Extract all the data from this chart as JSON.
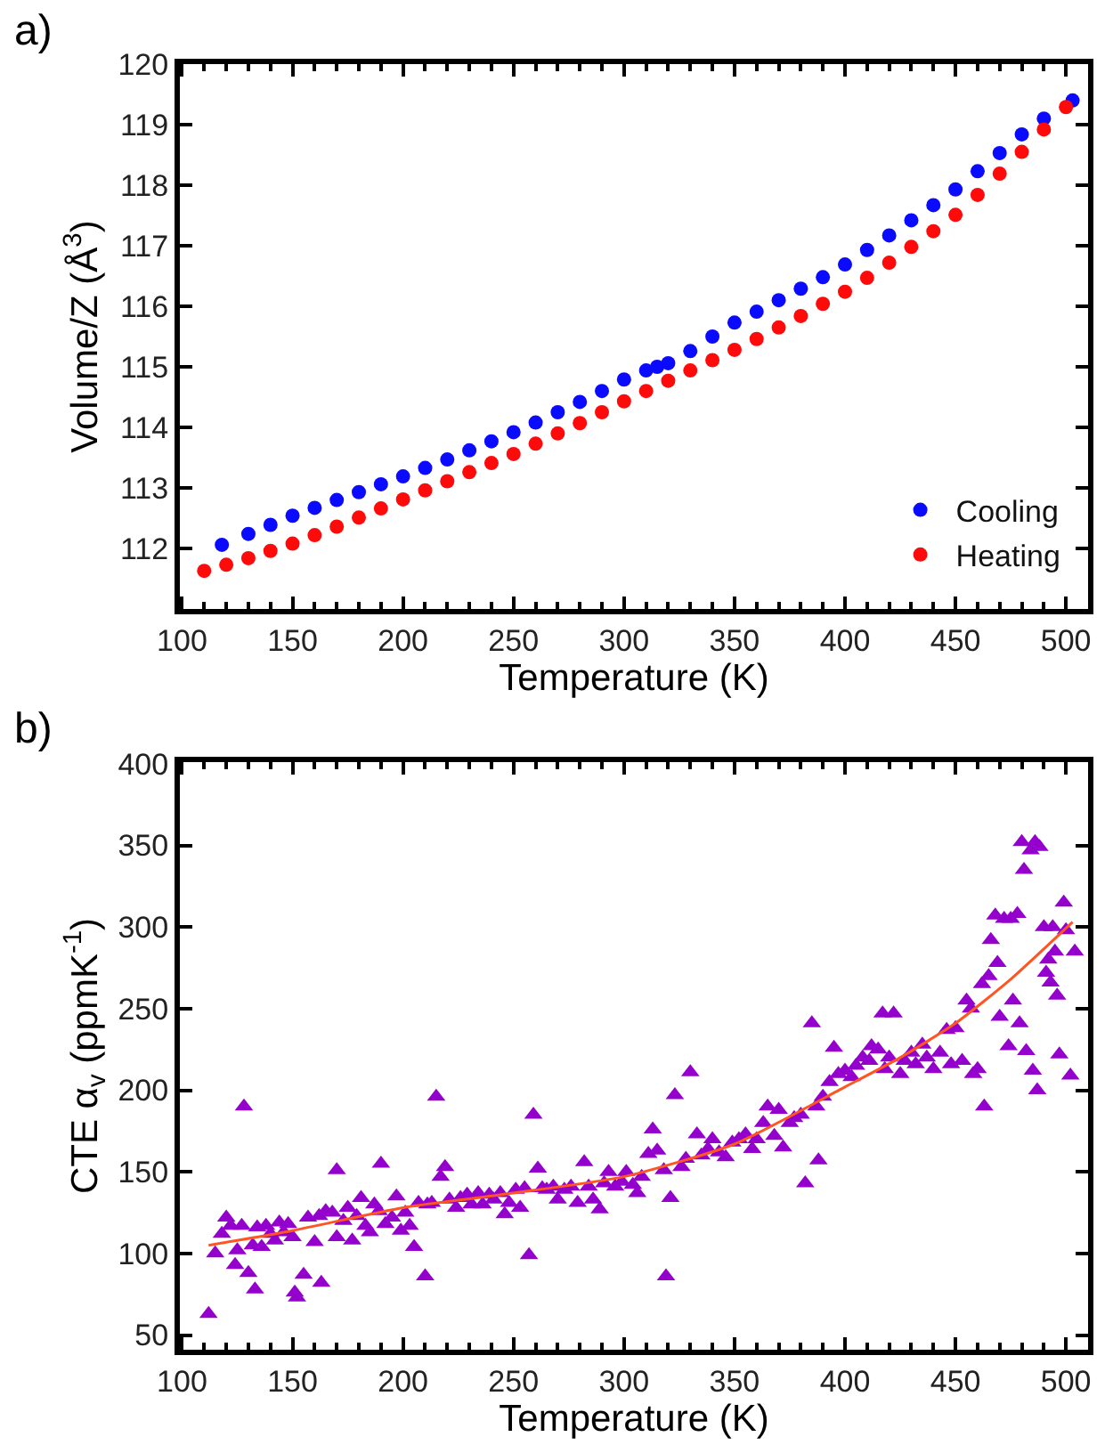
{
  "chart_data": [
    {
      "type": "scatter",
      "title": "a)",
      "xlabel": "Temperature (K)",
      "ylabel": "Volume/Z (Å$^{3}$)",
      "xlim": [
        99,
        510
      ],
      "ylim": [
        111,
        120
      ],
      "xticks": [
        100,
        150,
        200,
        250,
        300,
        350,
        400,
        450,
        500
      ],
      "yticks": [
        112,
        113,
        114,
        115,
        116,
        117,
        118,
        119,
        120
      ],
      "grid": false,
      "legend": "bottom right",
      "marker": "circle",
      "series": [
        {
          "name": "Cooling",
          "color": "#0a0aff",
          "x": [
            118,
            130,
            140,
            150,
            160,
            170,
            180,
            190,
            200,
            210,
            220,
            230,
            240,
            250,
            260,
            270,
            280,
            290,
            300,
            310,
            315,
            320,
            330,
            340,
            350,
            360,
            370,
            380,
            390,
            400,
            410,
            420,
            430,
            440,
            450,
            460,
            470,
            480,
            490,
            503
          ],
          "values": [
            112.06,
            112.24,
            112.39,
            112.54,
            112.67,
            112.8,
            112.93,
            113.06,
            113.19,
            113.33,
            113.47,
            113.62,
            113.77,
            113.92,
            114.08,
            114.25,
            114.42,
            114.6,
            114.79,
            114.94,
            115.0,
            115.06,
            115.26,
            115.5,
            115.73,
            115.91,
            116.1,
            116.29,
            116.48,
            116.69,
            116.93,
            117.17,
            117.42,
            117.67,
            117.93,
            118.23,
            118.53,
            118.84,
            119.1,
            119.4
          ]
        },
        {
          "name": "Heating",
          "color": "#ff0a0a",
          "x": [
            110,
            120,
            130,
            140,
            150,
            160,
            170,
            180,
            190,
            200,
            210,
            220,
            230,
            240,
            250,
            260,
            270,
            280,
            290,
            300,
            310,
            320,
            330,
            340,
            350,
            360,
            370,
            380,
            390,
            400,
            410,
            420,
            430,
            440,
            450,
            460,
            470,
            480,
            490,
            500
          ],
          "values": [
            111.63,
            111.73,
            111.84,
            111.96,
            112.08,
            112.22,
            112.36,
            112.51,
            112.66,
            112.81,
            112.96,
            113.11,
            113.26,
            113.41,
            113.56,
            113.73,
            113.9,
            114.07,
            114.25,
            114.43,
            114.6,
            114.77,
            114.94,
            115.11,
            115.28,
            115.46,
            115.65,
            115.84,
            116.04,
            116.24,
            116.47,
            116.72,
            116.98,
            117.24,
            117.51,
            117.84,
            118.19,
            118.55,
            118.92,
            119.29
          ]
        }
      ]
    },
    {
      "type": "scatter",
      "title": "b)",
      "xlabel": "Temperature (K)",
      "ylabel": "CTE α$_{v}$ (ppmK$^{-1}$)",
      "xlim": [
        99,
        510
      ],
      "ylim": [
        41,
        401
      ],
      "xticks": [
        100,
        150,
        200,
        250,
        300,
        350,
        400,
        450,
        500
      ],
      "yticks": [
        50,
        100,
        150,
        200,
        250,
        300,
        350,
        400
      ],
      "grid": false,
      "series": [
        {
          "color": "#9400cc",
          "marker": "triangle",
          "x": [
            112,
            115,
            118,
            120,
            122,
            124,
            125,
            127,
            128,
            130,
            132,
            133,
            134,
            136,
            138,
            140,
            142,
            144,
            146,
            148,
            150,
            151,
            152,
            155,
            157,
            160,
            162,
            163,
            165,
            168,
            170,
            170,
            173,
            175,
            177,
            179,
            181,
            183,
            185,
            187,
            189,
            190,
            192,
            195,
            197,
            199,
            201,
            203,
            205,
            207,
            210,
            211,
            213,
            215,
            217,
            219,
            221,
            224,
            226,
            229,
            231,
            234,
            236,
            239,
            241,
            244,
            246,
            248,
            251,
            253,
            255,
            257,
            259,
            261,
            263,
            265,
            268,
            270,
            273,
            276,
            279,
            282,
            284,
            286,
            289,
            291,
            293,
            296,
            299,
            301,
            304,
            306,
            308,
            311,
            313,
            315,
            318,
            319,
            321,
            323,
            326,
            328,
            330,
            333,
            335,
            338,
            340,
            343,
            346,
            349,
            352,
            355,
            358,
            360,
            363,
            365,
            368,
            370,
            372,
            375,
            377,
            380,
            382,
            385,
            387,
            388,
            390,
            393,
            395,
            397,
            400,
            403,
            405,
            408,
            411,
            412,
            415,
            417,
            418,
            420,
            422,
            425,
            427,
            430,
            432,
            435,
            437,
            440,
            443,
            446,
            448,
            450,
            453,
            455,
            457,
            458,
            460,
            462,
            463,
            465,
            466,
            468,
            469,
            470,
            472,
            474,
            475,
            476,
            478,
            479,
            480,
            481,
            482,
            484,
            485,
            486,
            487,
            488,
            490,
            491,
            492,
            493,
            494,
            495,
            496,
            497,
            499,
            500,
            502,
            504
          ],
          "values": [
            63,
            100,
            112,
            122,
            117,
            93,
            102,
            117,
            190,
            88,
            105,
            78,
            116,
            104,
            117,
            112,
            108,
            119,
            113,
            118,
            110,
            76,
            73,
            87,
            122,
            107,
            123,
            82,
            126,
            125,
            110,
            151,
            120,
            128,
            108,
            123,
            134,
            117,
            113,
            130,
            126,
            155,
            118,
            122,
            135,
            114,
            125,
            117,
            104,
            131,
            86,
            130,
            131,
            196,
            147,
            153,
            133,
            128,
            134,
            136,
            130,
            137,
            130,
            136,
            133,
            137,
            124,
            131,
            139,
            128,
            140,
            99,
            185,
            152,
            140,
            139,
            141,
            133,
            139,
            141,
            131,
            156,
            141,
            133,
            127,
            143,
            150,
            141,
            144,
            150,
            142,
            137,
            147,
            161,
            176,
            163,
            151,
            86,
            134,
            197,
            153,
            158,
            211,
            173,
            160,
            164,
            170,
            162,
            159,
            168,
            170,
            173,
            164,
            170,
            180,
            190,
            172,
            188,
            165,
            180,
            183,
            185,
            143,
            241,
            190,
            157,
            196,
            205,
            226,
            210,
            212,
            208,
            215,
            220,
            218,
            227,
            225,
            247,
            213,
            220,
            247,
            210,
            218,
            223,
            216,
            228,
            220,
            213,
            223,
            237,
            216,
            238,
            218,
            255,
            250,
            210,
            213,
            265,
            190,
            270,
            292,
            307,
            278,
            245,
            305,
            227,
            305,
            255,
            308,
            241,
            352,
            335,
            224,
            347,
            212,
            352,
            200,
            349,
            300,
            272,
            280,
            266,
            300,
            285,
            258,
            222,
            315,
            298,
            209,
            285
          ]
        },
        {
          "type": "line",
          "color": "#ff5522",
          "marker": "none",
          "line_style": "solid",
          "x": [
            112,
            150,
            200,
            250,
            300,
            350,
            400,
            425,
            450,
            475,
            503
          ],
          "values": [
            105,
            114,
            128,
            137,
            147,
            167,
            202,
            220,
            241,
            268,
            303
          ]
        }
      ]
    }
  ]
}
